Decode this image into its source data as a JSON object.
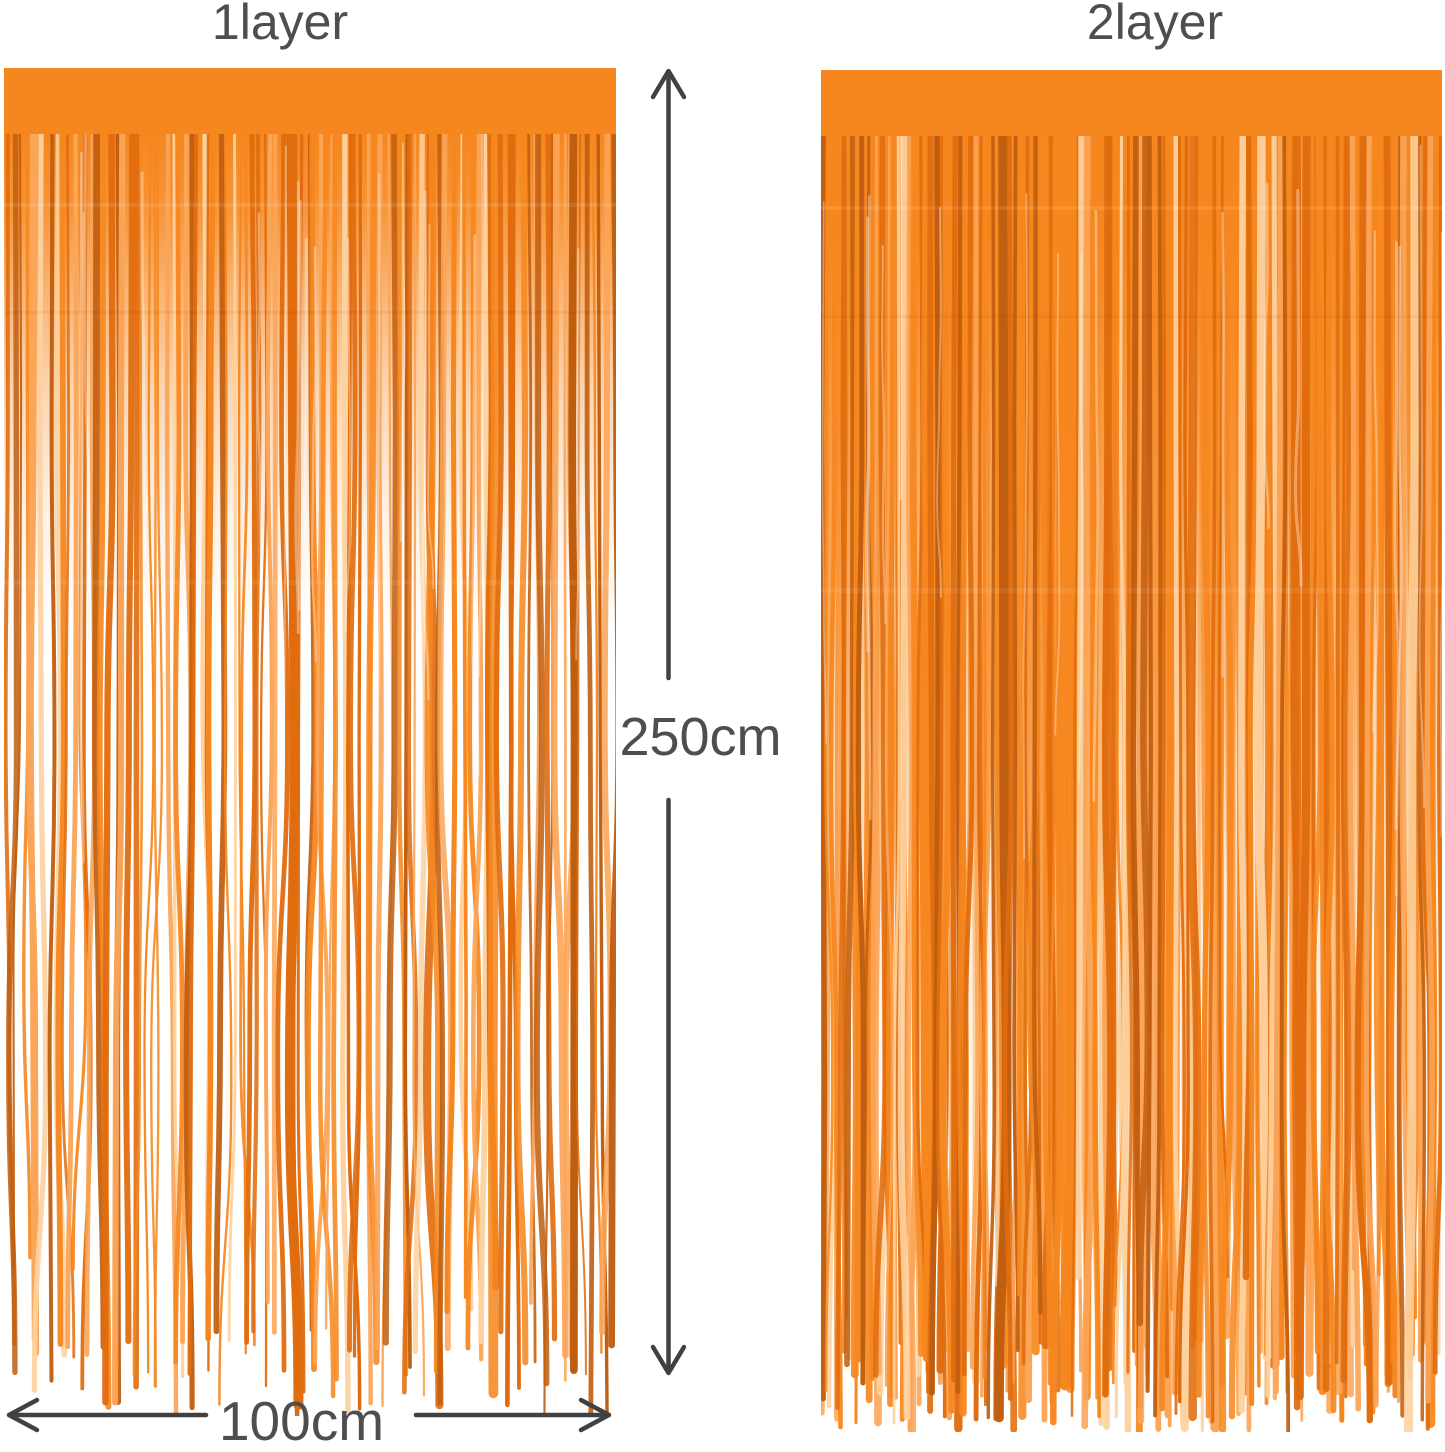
{
  "page": {
    "background": "#FFFFFF",
    "description": "Orange metallic tinsel foil fringe curtain size comparison"
  },
  "curtains": {
    "left": {
      "label": "1layer",
      "layers": 1
    },
    "right": {
      "label": "2layer",
      "layers": 2
    }
  },
  "dimensions": {
    "height": {
      "label": "250cm"
    },
    "width": {
      "label": "100cm"
    }
  },
  "colors": {
    "curtain_orange": "#F6871F",
    "curtain_orange_dark": "#E06C0E",
    "curtain_orange_deep": "#C05E10",
    "curtain_orange_light": "#FBA558",
    "curtain_orange_pale": "#FDD2A0",
    "shine_white": "#FFFFFF",
    "label_text": "#4E4E4E",
    "arrow": "#414141"
  }
}
